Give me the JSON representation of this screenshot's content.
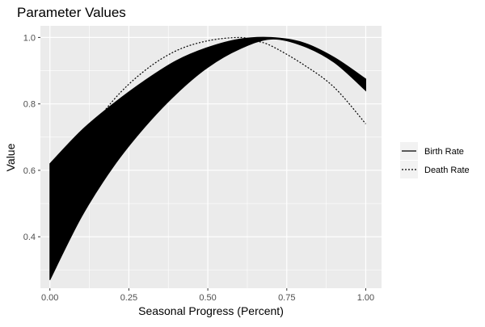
{
  "chart_data": {
    "type": "line",
    "title": "Parameter Values",
    "xlabel": "Seasonal Progress (Percent)",
    "ylabel": "Value",
    "xlim": [
      -0.03,
      1.05
    ],
    "ylim": [
      0.245,
      1.035
    ],
    "x_ticks": [
      0.0,
      0.25,
      0.5,
      0.75,
      1.0
    ],
    "x_tick_labels": [
      "0.00",
      "0.25",
      "0.50",
      "0.75",
      "1.00"
    ],
    "y_ticks": [
      0.4,
      0.6,
      0.8,
      1.0
    ],
    "y_tick_labels": [
      "0.4",
      "0.6",
      "0.8",
      "1.0"
    ],
    "grid": true,
    "legend_position": "right",
    "colors": {
      "panel_background": "#ebebeb",
      "grid": "#ffffff",
      "line": "#000000"
    },
    "series": [
      {
        "name": "Birth Rate",
        "linetype": "solid",
        "band": true,
        "x": [
          0.0,
          0.1,
          0.2,
          0.3,
          0.4,
          0.5,
          0.6,
          0.7,
          0.8,
          0.9,
          1.0
        ],
        "upper": [
          0.62,
          0.72,
          0.8,
          0.87,
          0.93,
          0.97,
          0.995,
          1.0,
          0.985,
          0.94,
          0.875
        ],
        "lower": [
          0.27,
          0.46,
          0.61,
          0.73,
          0.83,
          0.91,
          0.965,
          0.995,
          0.975,
          0.925,
          0.84
        ]
      },
      {
        "name": "Death Rate",
        "linetype": "dotted",
        "x": [
          0.0,
          0.1,
          0.2,
          0.3,
          0.4,
          0.5,
          0.6,
          0.65,
          0.7,
          0.8,
          0.9,
          1.0
        ],
        "values": [
          0.5,
          0.68,
          0.81,
          0.9,
          0.96,
          0.99,
          1.0,
          0.99,
          0.975,
          0.92,
          0.85,
          0.74
        ]
      }
    ]
  }
}
